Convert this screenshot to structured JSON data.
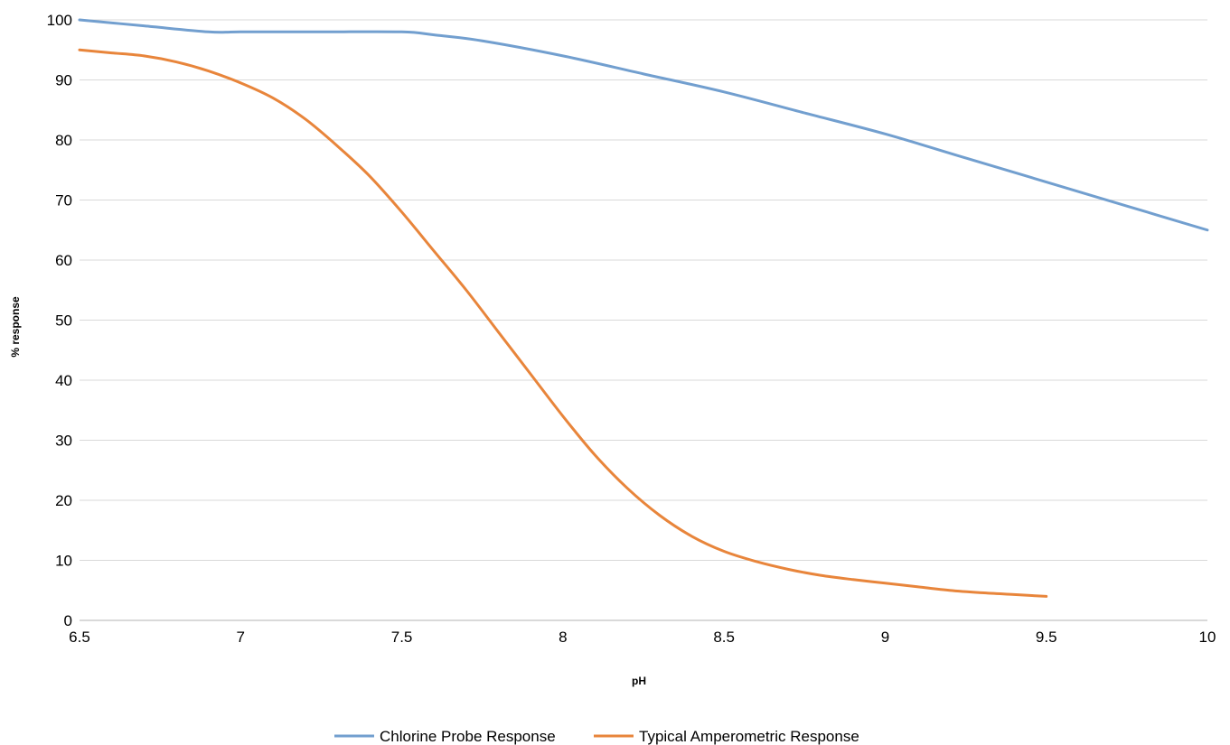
{
  "chart_data": {
    "type": "line",
    "title": "",
    "xlabel": "pH",
    "ylabel": "% response",
    "xlim": [
      6.5,
      10
    ],
    "ylim": [
      0,
      100
    ],
    "x_ticks": [
      "6.5",
      "7",
      "7.5",
      "8",
      "8.5",
      "9",
      "9.5",
      "10"
    ],
    "y_ticks": [
      "0",
      "10",
      "20",
      "30",
      "40",
      "50",
      "60",
      "70",
      "80",
      "90",
      "100"
    ],
    "grid": "horizontal",
    "legend_position": "bottom",
    "series": [
      {
        "name": "Chlorine Probe Response",
        "color": "#729fcf",
        "x": [
          6.5,
          6.7,
          6.9,
          7.0,
          7.25,
          7.5,
          7.6,
          7.75,
          8.0,
          8.25,
          8.5,
          8.75,
          9.0,
          9.25,
          9.5,
          9.75,
          10.0
        ],
        "y": [
          100,
          99,
          98,
          98,
          98,
          98,
          97.5,
          96.5,
          94,
          91,
          88,
          84.5,
          81,
          77,
          73,
          69,
          65
        ]
      },
      {
        "name": "Typical Amperometric Response",
        "color": "#e8853b",
        "x": [
          6.5,
          6.6,
          6.7,
          6.8,
          6.9,
          7.0,
          7.1,
          7.2,
          7.3,
          7.4,
          7.5,
          7.6,
          7.7,
          7.8,
          7.9,
          8.0,
          8.1,
          8.2,
          8.3,
          8.4,
          8.5,
          8.6,
          8.7,
          8.8,
          8.9,
          9.0,
          9.1,
          9.2,
          9.3,
          9.4,
          9.5
        ],
        "y": [
          95,
          94.5,
          94,
          93,
          91.5,
          89.5,
          87,
          83.5,
          79,
          74,
          68,
          61.5,
          55,
          48,
          41,
          34,
          27.5,
          22,
          17.5,
          14,
          11.5,
          9.8,
          8.5,
          7.5,
          6.8,
          6.2,
          5.6,
          5.0,
          4.6,
          4.3,
          4.0
        ]
      }
    ]
  }
}
